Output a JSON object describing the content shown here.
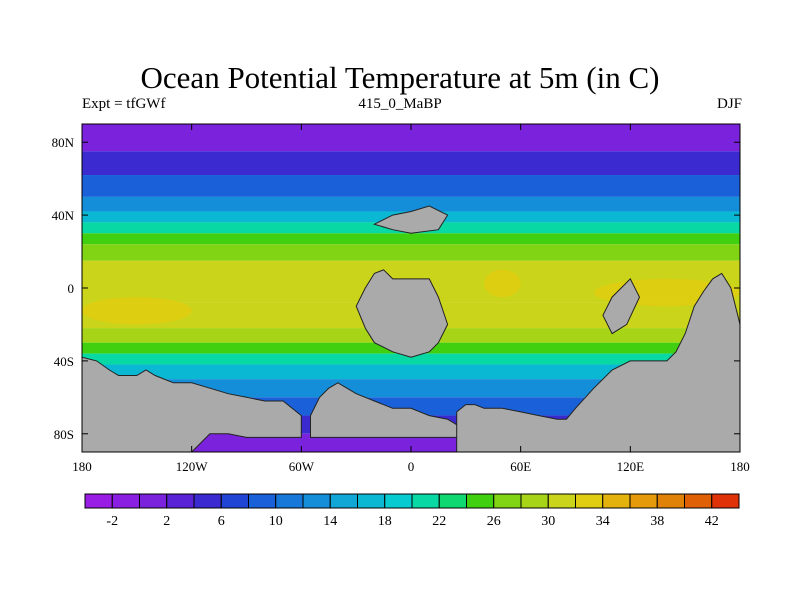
{
  "chart_data": {
    "type": "heatmap",
    "title": "Ocean Potential Temperature at 5m (in C)",
    "subtitle_left": "Expt = tfGWf",
    "subtitle_center": "415_0_MaBP",
    "subtitle_right": "DJF",
    "x_ticks": [
      "180",
      "120W",
      "60W",
      "0",
      "60E",
      "120E",
      "180"
    ],
    "x_tick_values": [
      -180,
      -120,
      -60,
      0,
      60,
      120,
      180
    ],
    "y_ticks": [
      "80N",
      "40N",
      "0",
      "40S",
      "80S"
    ],
    "y_tick_values": [
      80,
      40,
      0,
      -40,
      -80
    ],
    "xlim": [
      -180,
      180
    ],
    "ylim": [
      -90,
      90
    ],
    "colorbar": {
      "labels": [
        "-2",
        "2",
        "6",
        "10",
        "14",
        "18",
        "22",
        "26",
        "30",
        "34",
        "38",
        "42"
      ],
      "label_values": [
        -2,
        2,
        6,
        10,
        14,
        18,
        22,
        26,
        30,
        34,
        38,
        42
      ],
      "boundaries": [
        -4,
        -2,
        0,
        2,
        4,
        6,
        8,
        10,
        12,
        14,
        16,
        18,
        20,
        22,
        24,
        26,
        28,
        30,
        32,
        34,
        36,
        38,
        40,
        42,
        44
      ],
      "colors": [
        "#9a1de6",
        "#8a1fe2",
        "#7a22dc",
        "#5a23d6",
        "#3a2ad0",
        "#2045d4",
        "#1a60d8",
        "#1878da",
        "#148ed8",
        "#10a6d6",
        "#0ab8d4",
        "#06cbd0",
        "#08d8a4",
        "#10d870",
        "#40d010",
        "#80d414",
        "#a8d418",
        "#cad41a",
        "#e0cc10",
        "#e4b20c",
        "#e49a0a",
        "#e08208",
        "#e06006",
        "#e03208"
      ]
    },
    "latitude_bands": [
      {
        "lat_range": [
          90,
          75
        ],
        "value": 0
      },
      {
        "lat_range": [
          75,
          62
        ],
        "value": 4
      },
      {
        "lat_range": [
          62,
          50
        ],
        "value": 8
      },
      {
        "lat_range": [
          50,
          42
        ],
        "value": 12
      },
      {
        "lat_range": [
          42,
          36
        ],
        "value": 16
      },
      {
        "lat_range": [
          36,
          30
        ],
        "value": 20
      },
      {
        "lat_range": [
          30,
          24
        ],
        "value": 24
      },
      {
        "lat_range": [
          24,
          15
        ],
        "value": 27
      },
      {
        "lat_range": [
          15,
          -8
        ],
        "value": 30
      },
      {
        "lat_range": [
          -8,
          -22
        ],
        "value": 31
      },
      {
        "lat_range": [
          -22,
          -30
        ],
        "value": 28
      },
      {
        "lat_range": [
          -30,
          -36
        ],
        "value": 24
      },
      {
        "lat_range": [
          -36,
          -42
        ],
        "value": 20
      },
      {
        "lat_range": [
          -42,
          -50
        ],
        "value": 16
      },
      {
        "lat_range": [
          -50,
          -60
        ],
        "value": 12
      },
      {
        "lat_range": [
          -60,
          -70
        ],
        "value": 8
      },
      {
        "lat_range": [
          -70,
          -80
        ],
        "value": 4
      },
      {
        "lat_range": [
          -80,
          -90
        ],
        "value": 0
      }
    ],
    "warm_anomalies": [
      {
        "lon_range": [
          -180,
          -120
        ],
        "lat_range": [
          -5,
          -20
        ],
        "value": 32
      },
      {
        "lon_range": [
          100,
          180
        ],
        "lat_range": [
          5,
          -10
        ],
        "value": 32
      },
      {
        "lon_range": [
          40,
          60
        ],
        "lat_range": [
          10,
          -5
        ],
        "value": 32
      }
    ],
    "land_color": "#aaaaaa",
    "land_masses": [
      {
        "name": "Antarctica-west",
        "lon": [
          -180,
          -172,
          -165,
          -160,
          -150,
          -145,
          -140,
          -130,
          -120,
          -110,
          -100,
          -90,
          -80,
          -70,
          -60,
          -60,
          -65,
          -70,
          -75,
          -80,
          -90,
          -100,
          -110,
          -120,
          -130,
          -140,
          -150,
          -160,
          -170,
          -180
        ],
        "lat": [
          -38,
          -40,
          -45,
          -48,
          -48,
          -45,
          -48,
          -52,
          -52,
          -55,
          -58,
          -60,
          -62,
          -62,
          -70,
          -82,
          -82,
          -82,
          -82,
          -82,
          -82,
          -80,
          -80,
          -90,
          -90,
          -90,
          -90,
          -90,
          -90,
          -90
        ]
      },
      {
        "name": "Antarctica-central",
        "lon": [
          -55,
          -50,
          -45,
          -40,
          -30,
          -20,
          -10,
          0,
          10,
          20,
          25,
          30,
          30,
          20,
          10,
          0,
          -10,
          -20,
          -30,
          -40,
          -50,
          -55
        ],
        "lat": [
          -70,
          -60,
          -55,
          -52,
          -58,
          -62,
          -66,
          -66,
          -70,
          -72,
          -75,
          -80,
          -82,
          -82,
          -82,
          -82,
          -82,
          -82,
          -82,
          -82,
          -82,
          -82
        ]
      },
      {
        "name": "Antarctica-east",
        "lon": [
          25,
          30,
          35,
          40,
          50,
          60,
          70,
          80,
          85,
          90,
          100,
          110,
          120,
          130,
          140,
          145,
          150,
          155,
          160,
          165,
          170,
          175,
          180,
          180,
          170,
          160,
          150,
          140,
          130,
          120,
          110,
          100,
          90,
          80,
          70,
          60,
          50,
          40,
          30,
          25
        ],
        "lat": [
          -68,
          -64,
          -64,
          -66,
          -66,
          -68,
          -70,
          -72,
          -72,
          -66,
          -55,
          -45,
          -40,
          -40,
          -40,
          -35,
          -25,
          -10,
          -2,
          5,
          8,
          0,
          -20,
          -90,
          -90,
          -90,
          -90,
          -90,
          -90,
          -90,
          -90,
          -90,
          -90,
          -90,
          -90,
          -90,
          -90,
          -90,
          -90,
          -90
        ]
      },
      {
        "name": "Africa",
        "lon": [
          -30,
          -25,
          -20,
          -15,
          -10,
          0,
          10,
          15,
          20,
          15,
          10,
          0,
          -10,
          -20,
          -25,
          -30
        ],
        "lat": [
          -10,
          0,
          8,
          10,
          5,
          5,
          5,
          -5,
          -20,
          -30,
          -35,
          -38,
          -35,
          -30,
          -22,
          -10
        ]
      },
      {
        "name": "Eurasia-north",
        "lon": [
          -20,
          -10,
          0,
          10,
          20,
          15,
          0,
          -10,
          -20
        ],
        "lat": [
          35,
          40,
          42,
          45,
          40,
          32,
          30,
          32,
          35
        ]
      },
      {
        "name": "Australia-Asia",
        "lon": [
          105,
          110,
          115,
          120,
          125,
          118,
          110,
          105
        ],
        "lat": [
          -15,
          -5,
          0,
          5,
          -5,
          -20,
          -25,
          -15
        ]
      }
    ]
  }
}
